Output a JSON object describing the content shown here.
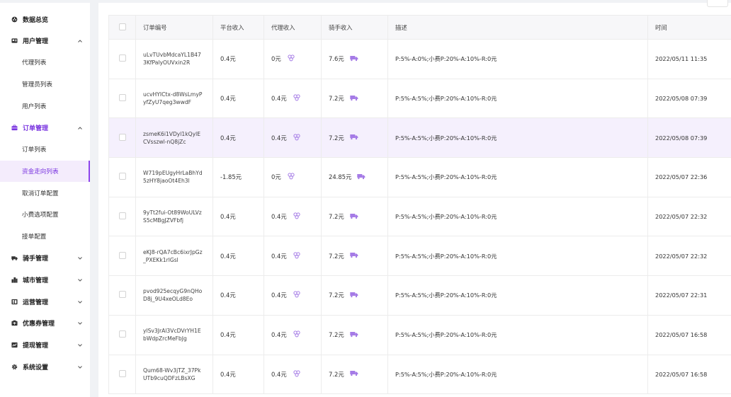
{
  "sidebar": {
    "groups": [
      {
        "label": "数据总览",
        "icon": "dashboard-icon",
        "chevron": ""
      },
      {
        "label": "用户管理",
        "icon": "user-card-icon",
        "chevron": "^"
      },
      {
        "label": "订单管理",
        "icon": "briefcase-icon",
        "chevron": "^"
      },
      {
        "label": "骑手管理",
        "icon": "truck-icon",
        "chevron": "v"
      },
      {
        "label": "城市管理",
        "icon": "city-icon",
        "chevron": "v"
      },
      {
        "label": "运营管理",
        "icon": "operations-icon",
        "chevron": "v"
      },
      {
        "label": "优惠券管理",
        "icon": "coupon-icon",
        "chevron": "v"
      },
      {
        "label": "提现管理",
        "icon": "withdraw-icon",
        "chevron": "v"
      },
      {
        "label": "系统设置",
        "icon": "gear-icon",
        "chevron": "v"
      }
    ],
    "user_sub": [
      "代理列表",
      "管理员列表",
      "用户列表"
    ],
    "order_sub": [
      "订单列表",
      "资金走向列表",
      "取消订单配置",
      "小费选项配置",
      "接单配置"
    ],
    "active_item": "资金走向列表",
    "accent": "#7a35e0"
  },
  "table": {
    "headers": [
      "订单编号",
      "平台收入",
      "代理收入",
      "骑手收入",
      "描述",
      "时间"
    ],
    "rows": [
      {
        "order_no": "uLvTUvbMdcaYL1B473KfPalyOUVxin2R",
        "platform": "0.4元",
        "agent": "0元",
        "rider": "7.6元",
        "desc": "P:5%-A:0%;小费P:20%-A:10%-R:0元",
        "time": "2022/05/11 11:35"
      },
      {
        "order_no": "ucvHYICtx-d8WsLmyPyfZyU7qeg3wwdF",
        "platform": "0.4元",
        "agent": "0.4元",
        "rider": "7.2元",
        "desc": "P:5%-A:5%;小费P:20%-A:10%-R:0元",
        "time": "2022/05/08 07:39"
      },
      {
        "order_no": "zsmeK6i1VDyl1kQylECVsszwl-nQ8jZc",
        "platform": "0.4元",
        "agent": "0.4元",
        "rider": "7.2元",
        "desc": "P:5%-A:5%;小费P:20%-A:10%-R:0元",
        "time": "2022/05/08 07:39"
      },
      {
        "order_no": "W719pEUgyHrLaBhYd5zHY8jaoOt4Eh3l",
        "platform": "-1.85元",
        "agent": "0元",
        "rider": "24.85元",
        "desc": "P:5%-A:5%;小费P:20%-A:10%-R:0元",
        "time": "2022/05/07 22:36"
      },
      {
        "order_no": "9yTt2fui-Ot89WoULVzS5cMBgJZVFbfj",
        "platform": "0.4元",
        "agent": "0.4元",
        "rider": "7.2元",
        "desc": "P:5%-A:5%;小费P:20%-A:10%-R:0元",
        "time": "2022/05/07 22:32"
      },
      {
        "order_no": "eKJ8-rQA7cBc6ixrJpGz_PXEKk1rlGsl",
        "platform": "0.4元",
        "agent": "0.4元",
        "rider": "7.2元",
        "desc": "P:5%-A:5%;小费P:20%-A:10%-R:0元",
        "time": "2022/05/07 22:32"
      },
      {
        "order_no": "pvod925ecqyG9nQHoD8j_9U4xeOLd8Eo",
        "platform": "0.4元",
        "agent": "0.4元",
        "rider": "7.2元",
        "desc": "P:5%-A:5%;小费P:20%-A:10%-R:0元",
        "time": "2022/05/07 22:31"
      },
      {
        "order_no": "ylSv3JrAl3VcDVrYH1EbWdpZrcMeFbJg",
        "platform": "0.4元",
        "agent": "0.4元",
        "rider": "7.2元",
        "desc": "P:5%-A:5%;小费P:20%-A:10%-R:0元",
        "time": "2022/05/07 16:58"
      },
      {
        "order_no": "Qum68-Wv3jTZ_37PkUTb9cuQDFzLBsXG",
        "platform": "0.4元",
        "agent": "0.4元",
        "rider": "7.2元",
        "desc": "P:5%-A:5%;小费P:20%-A:10%-R:0元",
        "time": "2022/05/07 16:58"
      }
    ],
    "highlighted_row": 2,
    "icon_color": "#a57be6"
  }
}
